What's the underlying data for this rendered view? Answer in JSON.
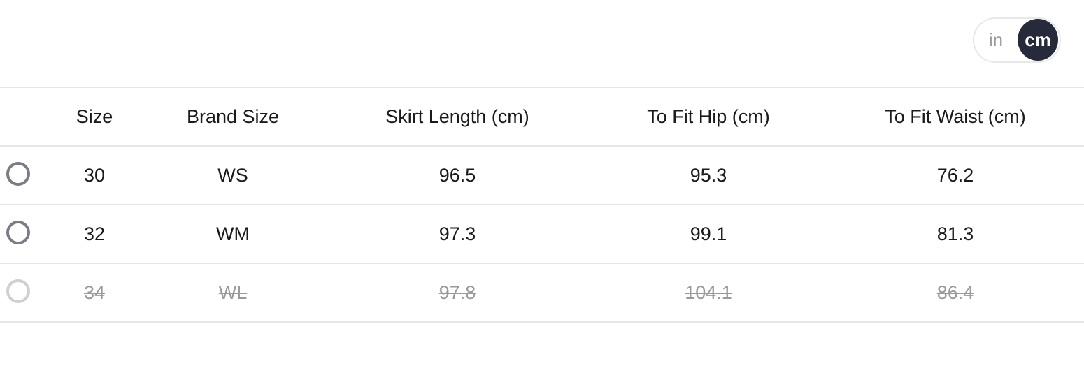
{
  "unit_toggle": {
    "options": [
      "in",
      "cm"
    ],
    "selected": "cm"
  },
  "table": {
    "headers": [
      "Size",
      "Brand Size",
      "Skirt Length (cm)",
      "To Fit Hip (cm)",
      "To Fit Waist (cm)"
    ],
    "rows": [
      {
        "cells": [
          "30",
          "WS",
          "96.5",
          "95.3",
          "76.2"
        ],
        "available": true,
        "selected": false
      },
      {
        "cells": [
          "32",
          "WM",
          "97.3",
          "99.1",
          "81.3"
        ],
        "available": true,
        "selected": false
      },
      {
        "cells": [
          "34",
          "WL",
          "97.8",
          "104.1",
          "86.4"
        ],
        "available": false,
        "selected": false
      }
    ]
  },
  "colors": {
    "accent": "#262a3b",
    "radio": "#7b7c85",
    "disabled": "#9a9a9a"
  }
}
